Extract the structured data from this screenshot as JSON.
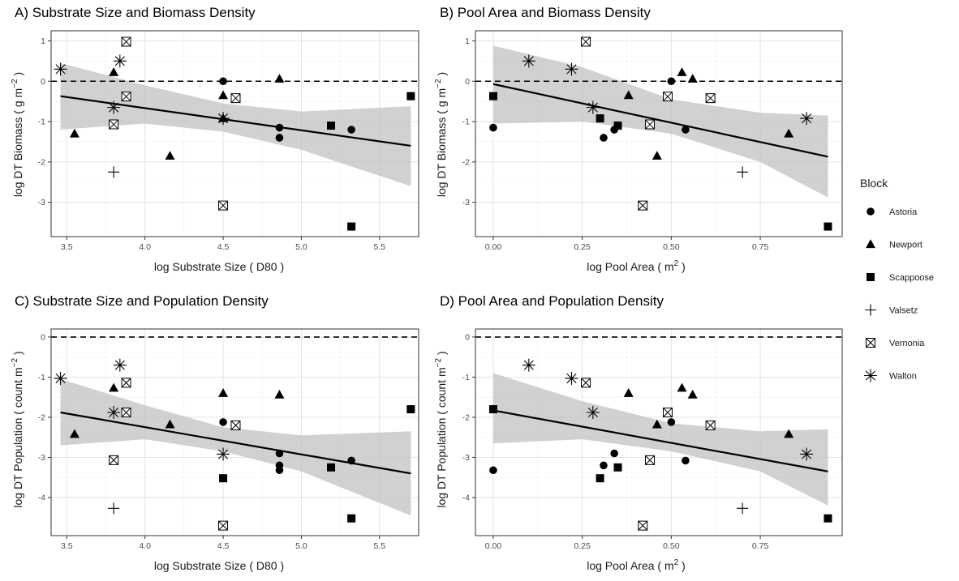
{
  "legend": {
    "title": "Block",
    "entries": [
      {
        "name": "Astoria",
        "shape": "circle"
      },
      {
        "name": "Newport",
        "shape": "triangle"
      },
      {
        "name": "Scappoose",
        "shape": "square"
      },
      {
        "name": "Valsetz",
        "shape": "plus"
      },
      {
        "name": "Vernonia",
        "shape": "boxed-x"
      },
      {
        "name": "Walton",
        "shape": "asterisk"
      }
    ]
  },
  "chart_data": [
    {
      "type": "scatter",
      "title": "A) Substrate Size and Biomass Density",
      "xlabel": "log Substrate Size ( D80 )",
      "ylabel": "log DT Biomass ( g m^-2 )",
      "xlim": [
        3.4,
        5.75
      ],
      "ylim": [
        -3.85,
        1.25
      ],
      "xticks": [
        3.5,
        4.0,
        4.5,
        5.0,
        5.5
      ],
      "xticklabels": [
        "3.5",
        "4.0",
        "4.5",
        "5.0",
        "5.5"
      ],
      "yticks": [
        1,
        0,
        -1,
        -2,
        -3
      ],
      "yticklabels": [
        "1",
        "0",
        "-1",
        "-2",
        "-3"
      ],
      "reference_line_y": 0,
      "fit": {
        "x": [
          3.46,
          5.7
        ],
        "y": [
          -0.37,
          -1.6
        ]
      },
      "band": {
        "x": [
          3.46,
          4.0,
          4.5,
          5.0,
          5.7
        ],
        "lower": [
          -1.2,
          -1.05,
          -1.25,
          -1.7,
          -2.6
        ],
        "upper": [
          0.45,
          -0.1,
          -0.55,
          -0.75,
          -0.62
        ]
      },
      "grid": true,
      "points": [
        {
          "block": "Astoria",
          "x": 4.5,
          "y": 0.0
        },
        {
          "block": "Astoria",
          "x": 4.86,
          "y": -1.15
        },
        {
          "block": "Astoria",
          "x": 4.86,
          "y": -1.4
        },
        {
          "block": "Astoria",
          "x": 5.32,
          "y": -1.2
        },
        {
          "block": "Newport",
          "x": 3.55,
          "y": -1.3
        },
        {
          "block": "Newport",
          "x": 3.8,
          "y": 0.22
        },
        {
          "block": "Newport",
          "x": 4.16,
          "y": -1.85
        },
        {
          "block": "Newport",
          "x": 4.5,
          "y": -0.35
        },
        {
          "block": "Newport",
          "x": 4.5,
          "y": -0.92
        },
        {
          "block": "Newport",
          "x": 4.86,
          "y": 0.06
        },
        {
          "block": "Scappoose",
          "x": 5.19,
          "y": -1.1
        },
        {
          "block": "Scappoose",
          "x": 5.32,
          "y": -3.6
        },
        {
          "block": "Scappoose",
          "x": 5.7,
          "y": -0.37
        },
        {
          "block": "Valsetz",
          "x": 3.8,
          "y": -2.25
        },
        {
          "block": "Vernonia",
          "x": 3.8,
          "y": -1.07
        },
        {
          "block": "Vernonia",
          "x": 3.88,
          "y": 0.98
        },
        {
          "block": "Vernonia",
          "x": 3.88,
          "y": -0.38
        },
        {
          "block": "Vernonia",
          "x": 4.5,
          "y": -3.08
        },
        {
          "block": "Vernonia",
          "x": 4.58,
          "y": -0.42
        },
        {
          "block": "Walton",
          "x": 3.46,
          "y": 0.3
        },
        {
          "block": "Walton",
          "x": 3.8,
          "y": -0.65
        },
        {
          "block": "Walton",
          "x": 3.84,
          "y": 0.5
        },
        {
          "block": "Walton",
          "x": 4.5,
          "y": -0.92
        }
      ]
    },
    {
      "type": "scatter",
      "title": "B) Pool Area and Biomass Density",
      "xlabel": "log Pool Area ( m^2 )",
      "ylabel": "log DT Biomass ( g m^-2 )",
      "xlim": [
        -0.05,
        0.98
      ],
      "ylim": [
        -3.85,
        1.25
      ],
      "xticks": [
        0.0,
        0.25,
        0.5,
        0.75
      ],
      "xticklabels": [
        "0.00",
        "0.25",
        "0.50",
        "0.75"
      ],
      "yticks": [
        1,
        0,
        -1,
        -2,
        -3
      ],
      "yticklabels": [
        "1",
        "0",
        "-1",
        "-2",
        "-3"
      ],
      "reference_line_y": 0,
      "fit": {
        "x": [
          0.0,
          0.94
        ],
        "y": [
          -0.07,
          -1.87
        ]
      },
      "band": {
        "x": [
          0.0,
          0.25,
          0.5,
          0.75,
          0.94
        ],
        "lower": [
          -1.05,
          -1.0,
          -1.3,
          -2.0,
          -2.88
        ],
        "upper": [
          0.88,
          0.35,
          -0.45,
          -0.78,
          -0.85
        ]
      },
      "grid": true,
      "points": [
        {
          "block": "Astoria",
          "x": 0.0,
          "y": -1.15
        },
        {
          "block": "Astoria",
          "x": 0.31,
          "y": -1.4
        },
        {
          "block": "Astoria",
          "x": 0.34,
          "y": -1.2
        },
        {
          "block": "Astoria",
          "x": 0.5,
          "y": 0.0
        },
        {
          "block": "Astoria",
          "x": 0.54,
          "y": -1.2
        },
        {
          "block": "Newport",
          "x": 0.38,
          "y": -0.35
        },
        {
          "block": "Newport",
          "x": 0.46,
          "y": -1.85
        },
        {
          "block": "Newport",
          "x": 0.53,
          "y": 0.22
        },
        {
          "block": "Newport",
          "x": 0.56,
          "y": 0.06
        },
        {
          "block": "Newport",
          "x": 0.83,
          "y": -1.3
        },
        {
          "block": "Scappoose",
          "x": 0.0,
          "y": -0.37
        },
        {
          "block": "Scappoose",
          "x": 0.3,
          "y": -0.92
        },
        {
          "block": "Scappoose",
          "x": 0.35,
          "y": -1.1
        },
        {
          "block": "Scappoose",
          "x": 0.94,
          "y": -3.6
        },
        {
          "block": "Valsetz",
          "x": 0.7,
          "y": -2.25
        },
        {
          "block": "Vernonia",
          "x": 0.26,
          "y": 0.98
        },
        {
          "block": "Vernonia",
          "x": 0.42,
          "y": -3.08
        },
        {
          "block": "Vernonia",
          "x": 0.44,
          "y": -1.07
        },
        {
          "block": "Vernonia",
          "x": 0.49,
          "y": -0.38
        },
        {
          "block": "Vernonia",
          "x": 0.61,
          "y": -0.42
        },
        {
          "block": "Walton",
          "x": 0.1,
          "y": 0.5
        },
        {
          "block": "Walton",
          "x": 0.22,
          "y": 0.3
        },
        {
          "block": "Walton",
          "x": 0.28,
          "y": -0.65
        },
        {
          "block": "Walton",
          "x": 0.88,
          "y": -0.92
        }
      ]
    },
    {
      "type": "scatter",
      "title": "C) Substrate Size and Population Density",
      "xlabel": "log Substrate Size ( D80 )",
      "ylabel": "log DT Population ( count m^-2 )",
      "xlim": [
        3.4,
        5.75
      ],
      "ylim": [
        -4.95,
        0.2
      ],
      "xticks": [
        3.5,
        4.0,
        4.5,
        5.0,
        5.5
      ],
      "xticklabels": [
        "3.5",
        "4.0",
        "4.5",
        "5.0",
        "5.5"
      ],
      "yticks": [
        0,
        -1,
        -2,
        -3,
        -4
      ],
      "yticklabels": [
        "0",
        "-1",
        "-2",
        "-3",
        "-4"
      ],
      "reference_line_y": 0,
      "fit": {
        "x": [
          3.46,
          5.7
        ],
        "y": [
          -1.88,
          -3.4
        ]
      },
      "band": {
        "x": [
          3.46,
          4.0,
          4.5,
          5.0,
          5.7
        ],
        "lower": [
          -2.7,
          -2.55,
          -2.85,
          -3.35,
          -4.45
        ],
        "upper": [
          -1.05,
          -1.7,
          -2.25,
          -2.45,
          -2.35
        ]
      },
      "grid": true,
      "points": [
        {
          "block": "Astoria",
          "x": 4.5,
          "y": -2.12
        },
        {
          "block": "Astoria",
          "x": 4.86,
          "y": -2.9
        },
        {
          "block": "Astoria",
          "x": 4.86,
          "y": -3.2
        },
        {
          "block": "Astoria",
          "x": 4.86,
          "y": -3.32
        },
        {
          "block": "Astoria",
          "x": 5.32,
          "y": -3.08
        },
        {
          "block": "Newport",
          "x": 3.55,
          "y": -2.42
        },
        {
          "block": "Newport",
          "x": 3.8,
          "y": -1.27
        },
        {
          "block": "Newport",
          "x": 4.16,
          "y": -2.18
        },
        {
          "block": "Newport",
          "x": 4.5,
          "y": -1.4
        },
        {
          "block": "Newport",
          "x": 4.86,
          "y": -1.44
        },
        {
          "block": "Scappoose",
          "x": 4.5,
          "y": -3.52
        },
        {
          "block": "Scappoose",
          "x": 5.19,
          "y": -3.25
        },
        {
          "block": "Scappoose",
          "x": 5.32,
          "y": -4.52
        },
        {
          "block": "Scappoose",
          "x": 5.7,
          "y": -1.8
        },
        {
          "block": "Valsetz",
          "x": 3.8,
          "y": -4.27
        },
        {
          "block": "Vernonia",
          "x": 3.8,
          "y": -3.07
        },
        {
          "block": "Vernonia",
          "x": 3.88,
          "y": -1.14
        },
        {
          "block": "Vernonia",
          "x": 3.88,
          "y": -1.88
        },
        {
          "block": "Vernonia",
          "x": 4.5,
          "y": -4.7
        },
        {
          "block": "Vernonia",
          "x": 4.58,
          "y": -2.2
        },
        {
          "block": "Walton",
          "x": 3.46,
          "y": -1.03
        },
        {
          "block": "Walton",
          "x": 3.8,
          "y": -1.88
        },
        {
          "block": "Walton",
          "x": 3.84,
          "y": -0.7
        },
        {
          "block": "Walton",
          "x": 4.5,
          "y": -2.92
        }
      ]
    },
    {
      "type": "scatter",
      "title": "D) Pool Area and Population Density",
      "xlabel": "log Pool Area ( m^2 )",
      "ylabel": "log DT Population ( count m^-2 )",
      "xlim": [
        -0.05,
        0.98
      ],
      "ylim": [
        -4.95,
        0.2
      ],
      "xticks": [
        0.0,
        0.25,
        0.5,
        0.75
      ],
      "xticklabels": [
        "0.00",
        "0.25",
        "0.50",
        "0.75"
      ],
      "yticks": [
        0,
        -1,
        -2,
        -3,
        -4
      ],
      "yticklabels": [
        "0",
        "-1",
        "-2",
        "-3",
        "-4"
      ],
      "reference_line_y": 0,
      "fit": {
        "x": [
          0.0,
          0.94
        ],
        "y": [
          -1.83,
          -3.35
        ]
      },
      "band": {
        "x": [
          0.0,
          0.25,
          0.5,
          0.75,
          0.94
        ],
        "lower": [
          -2.65,
          -2.55,
          -2.85,
          -3.35,
          -4.2
        ],
        "upper": [
          -0.9,
          -1.6,
          -2.15,
          -2.35,
          -2.3
        ]
      },
      "grid": true,
      "points": [
        {
          "block": "Astoria",
          "x": 0.0,
          "y": -3.32
        },
        {
          "block": "Astoria",
          "x": 0.31,
          "y": -3.2
        },
        {
          "block": "Astoria",
          "x": 0.34,
          "y": -2.9
        },
        {
          "block": "Astoria",
          "x": 0.5,
          "y": -2.12
        },
        {
          "block": "Astoria",
          "x": 0.54,
          "y": -3.08
        },
        {
          "block": "Newport",
          "x": 0.38,
          "y": -1.4
        },
        {
          "block": "Newport",
          "x": 0.46,
          "y": -2.18
        },
        {
          "block": "Newport",
          "x": 0.53,
          "y": -1.27
        },
        {
          "block": "Newport",
          "x": 0.56,
          "y": -1.44
        },
        {
          "block": "Newport",
          "x": 0.83,
          "y": -2.42
        },
        {
          "block": "Scappoose",
          "x": 0.0,
          "y": -1.8
        },
        {
          "block": "Scappoose",
          "x": 0.3,
          "y": -3.52
        },
        {
          "block": "Scappoose",
          "x": 0.35,
          "y": -3.25
        },
        {
          "block": "Scappoose",
          "x": 0.94,
          "y": -4.52
        },
        {
          "block": "Valsetz",
          "x": 0.7,
          "y": -4.27
        },
        {
          "block": "Vernonia",
          "x": 0.26,
          "y": -1.14
        },
        {
          "block": "Vernonia",
          "x": 0.42,
          "y": -4.7
        },
        {
          "block": "Vernonia",
          "x": 0.44,
          "y": -3.07
        },
        {
          "block": "Vernonia",
          "x": 0.49,
          "y": -1.88
        },
        {
          "block": "Vernonia",
          "x": 0.61,
          "y": -2.2
        },
        {
          "block": "Walton",
          "x": 0.1,
          "y": -0.7
        },
        {
          "block": "Walton",
          "x": 0.22,
          "y": -1.03
        },
        {
          "block": "Walton",
          "x": 0.28,
          "y": -1.88
        },
        {
          "block": "Walton",
          "x": 0.88,
          "y": -2.92
        }
      ]
    }
  ]
}
